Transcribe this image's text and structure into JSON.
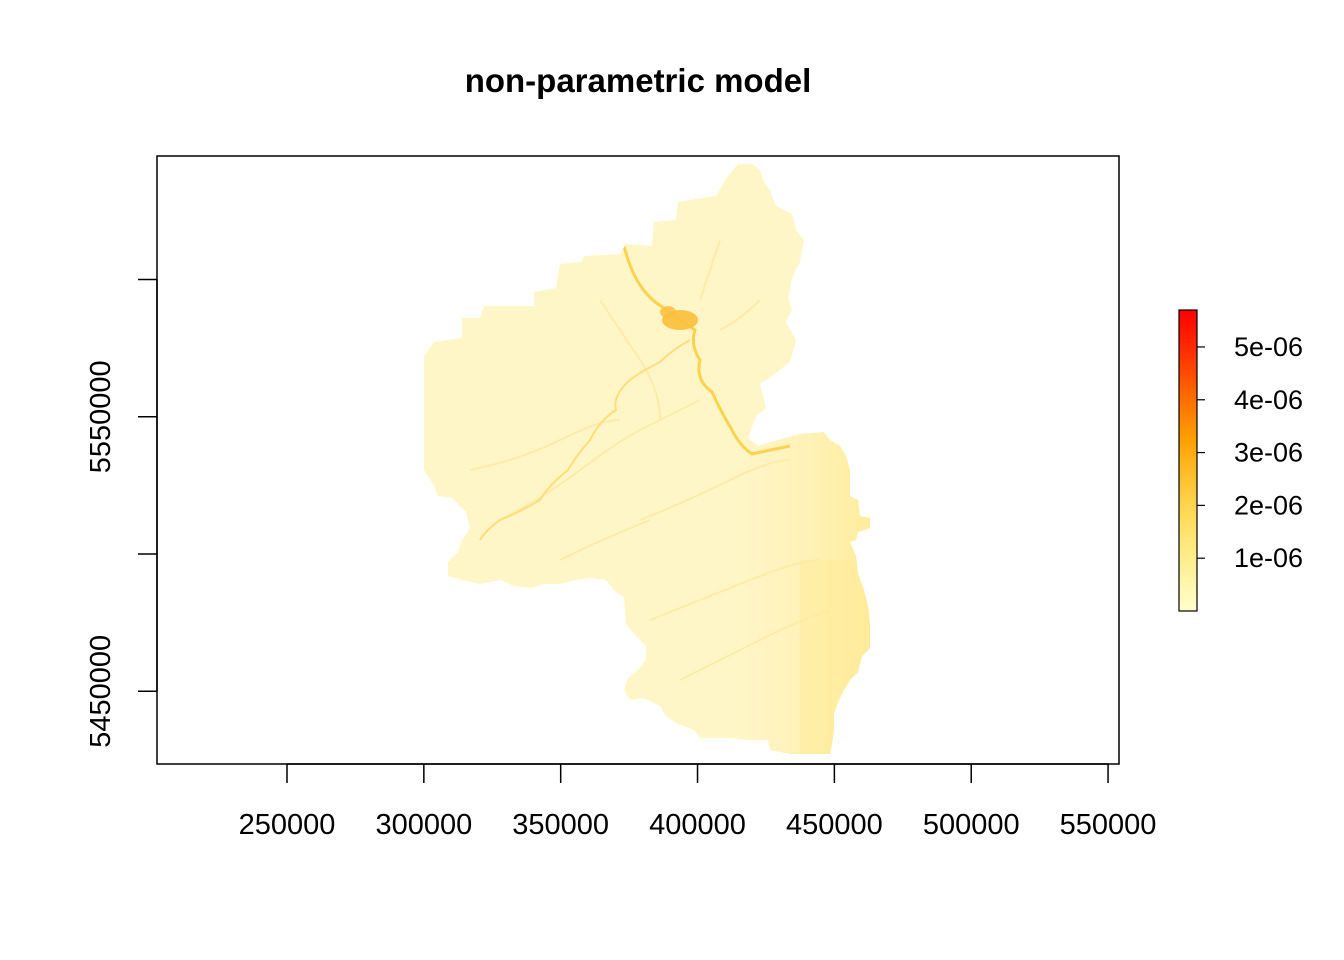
{
  "chart_data": {
    "type": "heatmap",
    "title": "non-parametric model",
    "xlabel": "",
    "ylabel": "",
    "xlim": [
      202500,
      554000
    ],
    "ylim": [
      5423500,
      5645000
    ],
    "x_ticks": [
      250000,
      300000,
      350000,
      400000,
      450000,
      500000,
      550000
    ],
    "x_tick_labels": [
      "250000",
      "300000",
      "350000",
      "400000",
      "450000",
      "500000",
      "550000"
    ],
    "y_ticks": [
      5450000,
      5500000,
      5550000,
      5600000
    ],
    "y_tick_labels": [
      "5450000",
      "",
      "5550000",
      ""
    ],
    "legend": {
      "position": "right",
      "range": [
        0,
        5.7e-06
      ],
      "ticks": [
        1e-06,
        2e-06,
        3e-06,
        4e-06,
        5e-06
      ],
      "tick_labels": [
        "1e-06",
        "2e-06",
        "3e-06",
        "4e-06",
        "5e-06"
      ],
      "colors": [
        "#ffffcc",
        "#fff099",
        "#ffe066",
        "#ffc433",
        "#ff9f00",
        "#ff6a00",
        "#ff3000",
        "#ff0000"
      ]
    },
    "region": {
      "base_color": "#fff6c8",
      "east_color": "#ffeb99",
      "river_color": "#ffd24d",
      "hotspot_color": "#fbc040"
    },
    "grid": false
  }
}
